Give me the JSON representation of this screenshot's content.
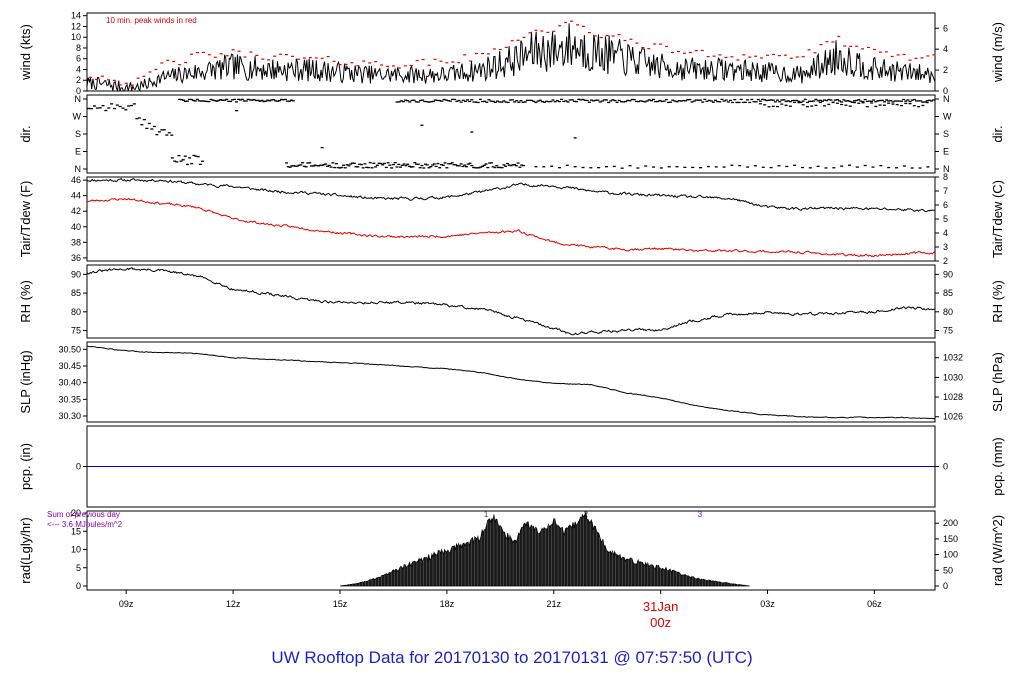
{
  "page_title": "UW Rooftop Data for 20170130  to  20170131 @ 07:57:50  (UTC)",
  "colors": {
    "air": "#000000",
    "dew": "#e00000",
    "precip": "#0000cc",
    "annotation": "#e00000",
    "rad_note": "#8800aa",
    "title": "#1f1fc8"
  },
  "chart_data": [
    {
      "type": "line",
      "panel": "wind",
      "ylabel": "wind (kts)",
      "ylabel_right": "wind (m/s)",
      "annotation": "10 min. peak winds in red",
      "y_ticks": [
        0,
        2,
        4,
        6,
        8,
        10,
        12,
        14
      ],
      "y_ticks_right": [
        0,
        2,
        4,
        6
      ],
      "ylim": [
        0,
        14.5
      ],
      "x_hours": [
        7.9,
        8.5,
        9,
        9.5,
        10,
        10.5,
        11,
        12,
        13,
        14,
        15,
        16,
        17,
        18,
        19,
        19.5,
        20,
        20.5,
        21,
        21.5,
        22,
        23,
        24,
        25,
        26,
        27,
        28,
        29,
        30,
        31.7
      ],
      "series": [
        {
          "values": [
            1.5,
            1.2,
            0.5,
            1,
            2.5,
            3,
            3.5,
            4.5,
            4,
            4,
            3.5,
            3,
            3,
            3,
            4,
            5,
            6,
            7.5,
            7.5,
            8.5,
            7.5,
            6,
            4.5,
            4,
            4,
            3.5,
            3,
            6.5,
            4,
            3
          ]
        },
        {
          "values": [
            3,
            2.5,
            1.5,
            2,
            5,
            5.5,
            6.5,
            7,
            6.5,
            6,
            5.5,
            5,
            5,
            5.5,
            6.5,
            8,
            10,
            11,
            11.5,
            12.5,
            11,
            9.5,
            8,
            7,
            6.5,
            6.5,
            6.5,
            9.5,
            7,
            6
          ]
        }
      ]
    },
    {
      "type": "scatter",
      "panel": "direction",
      "ylabel": "dir.",
      "ylabel_right": "dir.",
      "y_ticks": [
        "N",
        "E",
        "S",
        "W",
        "N"
      ],
      "ylim": [
        0,
        360
      ]
    },
    {
      "type": "line",
      "panel": "temperature",
      "ylabel": "Tair/Tdew (F)",
      "ylabel_right": "Tair/Tdew (C)",
      "y_ticks": [
        36,
        38,
        40,
        42,
        44,
        46
      ],
      "y_ticks_right": [
        2,
        3,
        4,
        5,
        6,
        7,
        8
      ],
      "ylim": [
        35.6,
        46.4
      ],
      "x_hours": [
        7.9,
        9,
        10,
        11,
        12,
        13,
        14,
        15,
        16,
        17,
        18,
        19,
        20,
        21,
        22,
        23,
        24,
        25,
        26,
        27,
        28,
        29,
        30,
        31,
        31.7
      ],
      "series": [
        {
          "values": [
            46,
            46,
            46,
            45.5,
            45.2,
            44.6,
            44.4,
            44,
            43.6,
            43.6,
            43.8,
            44.5,
            45.4,
            45.3,
            44.6,
            44.2,
            44,
            43.8,
            43.6,
            42.5,
            42.3,
            42.4,
            42.3,
            42.2,
            42
          ]
        },
        {
          "values": [
            43.3,
            43.6,
            43,
            42.5,
            41,
            40.3,
            39.8,
            39.2,
            38.8,
            38.7,
            38.8,
            39.2,
            39.5,
            38,
            37.4,
            37.1,
            37.2,
            36.9,
            36.9,
            36.8,
            36.7,
            36.4,
            36.3,
            36.6,
            36.7
          ]
        }
      ]
    },
    {
      "type": "line",
      "panel": "humidity",
      "ylabel": "RH (%)",
      "ylabel_right": "RH (%)",
      "y_ticks": [
        75,
        80,
        85,
        90
      ],
      "y_ticks_right": [
        75,
        80,
        85,
        90
      ],
      "ylim": [
        73,
        92.5
      ],
      "x_hours": [
        7.9,
        9,
        10,
        11,
        11.5,
        12,
        13,
        14,
        15,
        16,
        17,
        18,
        19,
        20,
        21,
        21.5,
        22,
        23,
        24,
        25,
        26,
        27,
        28,
        29,
        30,
        31,
        31.7
      ],
      "series": [
        {
          "values": [
            90.5,
            91.5,
            91,
            89.5,
            88,
            86,
            84.8,
            83.2,
            82.5,
            82.5,
            82.5,
            81.7,
            80.7,
            78.3,
            75.5,
            74,
            74.6,
            75,
            75.3,
            77.8,
            79.4,
            79.8,
            79.4,
            79.6,
            80,
            81.2,
            80.6
          ]
        }
      ]
    },
    {
      "type": "line",
      "panel": "pressure",
      "ylabel": "SLP (inHg)",
      "ylabel_right": "SLP (hPa)",
      "y_ticks": [
        30.3,
        30.35,
        30.4,
        30.45,
        30.5
      ],
      "y_tick_labels": [
        "30.30",
        "30.35",
        "30.40",
        "30.45",
        "30.50"
      ],
      "y_ticks_right": [
        1026,
        1028,
        1030,
        1032
      ],
      "ylim": [
        30.282,
        30.522
      ],
      "x_hours": [
        7.9,
        9,
        10,
        11,
        12,
        13,
        14,
        15,
        16,
        17,
        18,
        19,
        20,
        21,
        22,
        23,
        24,
        25,
        26,
        27,
        28,
        29,
        30,
        31,
        31.7
      ],
      "series": [
        {
          "values": [
            30.51,
            30.495,
            30.49,
            30.488,
            30.475,
            30.47,
            30.465,
            30.46,
            30.455,
            30.448,
            30.442,
            30.43,
            30.41,
            30.398,
            30.395,
            30.37,
            30.355,
            30.33,
            30.315,
            30.303,
            30.298,
            30.295,
            30.296,
            30.295,
            30.292
          ]
        }
      ]
    },
    {
      "type": "line",
      "panel": "precipitation",
      "ylabel": "pcp. (in)",
      "ylabel_right": "pcp. (mm)",
      "y_ticks": [
        0
      ],
      "y_ticks_right": [
        0
      ],
      "ylim": [
        -1,
        1
      ],
      "series": [
        {
          "values": [
            0,
            0
          ]
        }
      ]
    },
    {
      "type": "area",
      "panel": "radiation",
      "ylabel": "rad(Lgly/hr)",
      "ylabel_right": "rad (W/m^2)",
      "annotation_lines": [
        "Sum of previous day",
        "<--- 3.6 MJoules/m^2"
      ],
      "markers": [
        "1",
        "2",
        "3"
      ],
      "marker_hours": [
        19.1,
        21.9,
        25.1
      ],
      "y_ticks": [
        0,
        5,
        10,
        15,
        20
      ],
      "y_ticks_right": [
        0,
        50,
        100,
        150,
        200
      ],
      "ylim": [
        0,
        20
      ],
      "x_hours": [
        15,
        15.5,
        16,
        16.5,
        17,
        17.5,
        18,
        18.5,
        18.9,
        19.1,
        19.3,
        19.6,
        19.9,
        20.2,
        20.6,
        21,
        21.3,
        21.6,
        21.9,
        22.2,
        22.5,
        23,
        23.5,
        24,
        24.5,
        25,
        25.5,
        26,
        26.5
      ],
      "series": [
        {
          "values": [
            0,
            0.7,
            2,
            4,
            6,
            8,
            9.5,
            11.5,
            13,
            16.5,
            19,
            14.5,
            12,
            17.5,
            14.5,
            18,
            14.5,
            17,
            19.5,
            15,
            10,
            7.2,
            6.1,
            5,
            3.5,
            2,
            1.3,
            0.6,
            0
          ]
        }
      ]
    }
  ],
  "x_axis": {
    "ticks": [
      "09z",
      "12z",
      "15z",
      "18z",
      "21z",
      "03z",
      "06z"
    ],
    "tick_hours": [
      9,
      12,
      15,
      18,
      21,
      27,
      30
    ],
    "date_label": "31Jan",
    "date_hour_label": "00z",
    "date_hour": 24
  }
}
